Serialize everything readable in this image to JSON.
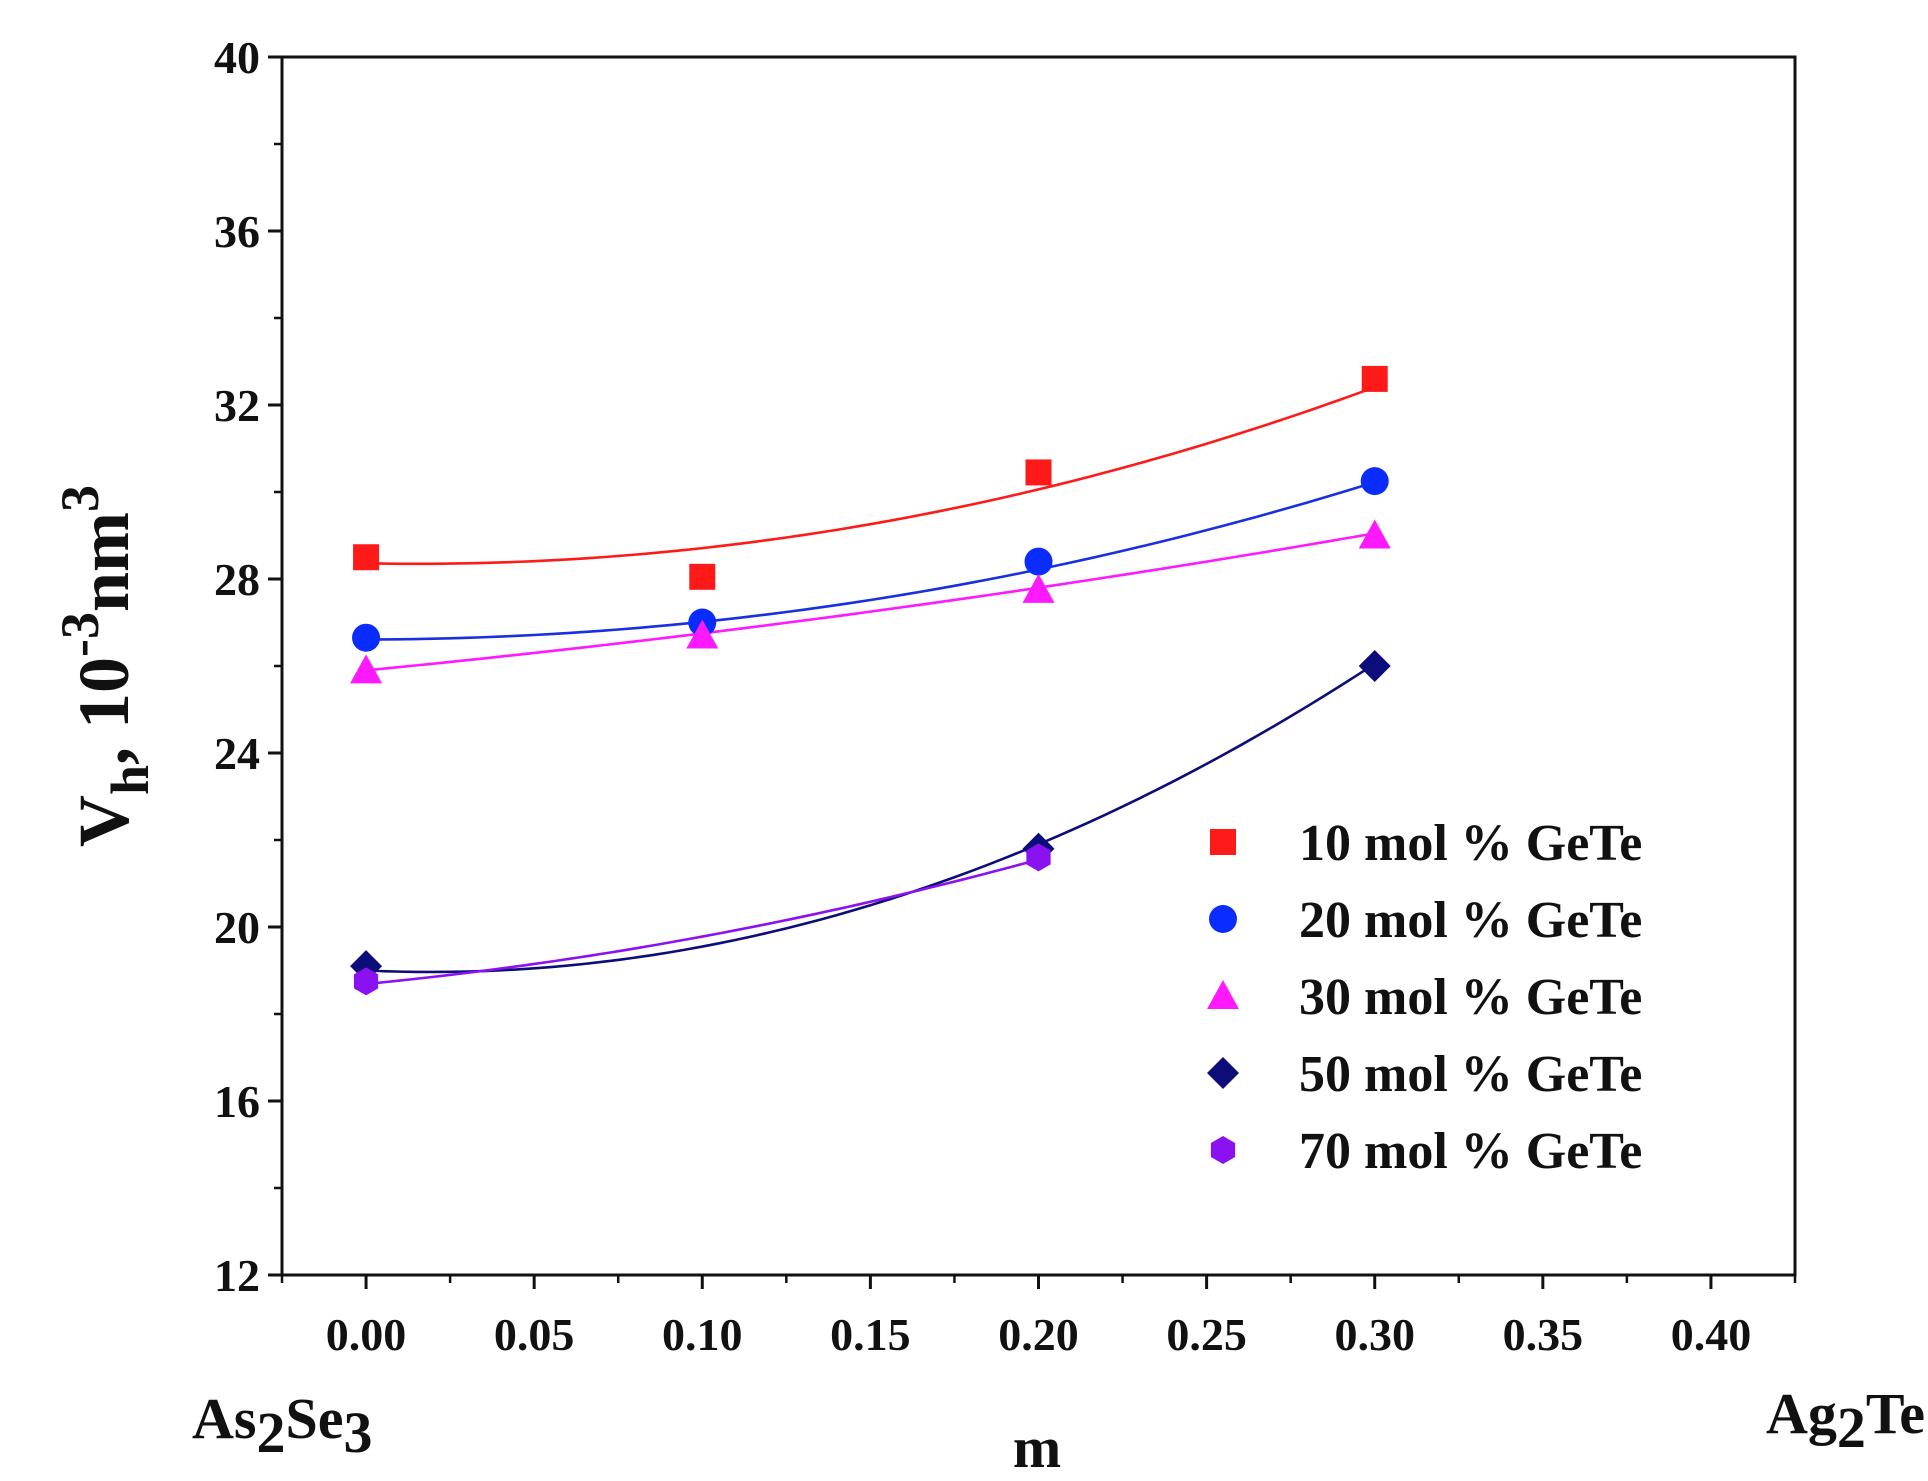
{
  "chart_data": {
    "type": "scatter",
    "title": "",
    "xlabel": "m",
    "ylabel": {
      "main": "V",
      "sub": "h",
      "rest": ", 10",
      "sup1": "-3",
      "unit": "nm",
      "sup2": "3"
    },
    "xlim": [
      -0.025,
      0.425
    ],
    "ylim": [
      12,
      40
    ],
    "xticks": [
      0.0,
      0.05,
      0.1,
      0.15,
      0.2,
      0.25,
      0.3,
      0.35,
      0.4
    ],
    "xtick_labels": [
      "0.00",
      "0.05",
      "0.10",
      "0.15",
      "0.20",
      "0.25",
      "0.30",
      "0.35",
      "0.40"
    ],
    "yticks": [
      12,
      16,
      20,
      24,
      28,
      32,
      36,
      40
    ],
    "ytick_labels": [
      "12",
      "16",
      "20",
      "24",
      "28",
      "32",
      "36",
      "40"
    ],
    "left_endmember": {
      "a": "As",
      "a_sub": "2",
      "b": "Se",
      "b_sub": "3"
    },
    "right_endmember": {
      "a": "Ag",
      "a_sub": "2",
      "b": "Te"
    },
    "legend_position": "lower-right",
    "series": [
      {
        "name": "10 mol % GeTe",
        "color": "#ff1a1a",
        "marker": "square",
        "x": [
          0.0,
          0.1,
          0.2,
          0.3
        ],
        "y": [
          28.5,
          28.05,
          30.45,
          32.6
        ],
        "fit": {
          "color": "#ff1a1a",
          "x": [
            0.0,
            0.3
          ],
          "quad": [
            28.36,
            -1.5,
            50.0
          ]
        }
      },
      {
        "name": "20 mol % GeTe",
        "color": "#0a2cff",
        "marker": "circle",
        "x": [
          0.0,
          0.1,
          0.2,
          0.3
        ],
        "y": [
          26.65,
          27.0,
          28.4,
          30.25
        ],
        "fit": {
          "color": "#1a2fe0",
          "x": [
            0.0,
            0.3
          ],
          "quad": [
            26.61,
            0.05,
            40.0
          ]
        }
      },
      {
        "name": "30 mol % GeTe",
        "color": "#ff19ff",
        "marker": "triangle",
        "x": [
          0.0,
          0.1,
          0.2,
          0.3
        ],
        "y": [
          25.9,
          26.7,
          27.75,
          29.0
        ],
        "fit": {
          "color": "#ff19ff",
          "x": [
            0.0,
            0.3
          ],
          "quad": [
            25.9,
            7.5,
            10.0
          ]
        }
      },
      {
        "name": "50 mol % GeTe",
        "color": "#0c0c7a",
        "marker": "diamond",
        "x": [
          0.0,
          0.2,
          0.3
        ],
        "y": [
          19.1,
          21.8,
          26.0
        ],
        "fit": {
          "color": "#0c0c7a",
          "x": [
            0.0,
            0.3
          ],
          "quad": [
            19.0,
            -3.5,
            90.0
          ]
        }
      },
      {
        "name": "70 mol % GeTe",
        "color": "#8a12f0",
        "marker": "hexagon",
        "x": [
          0.0,
          0.2
        ],
        "y": [
          18.75,
          21.6
        ],
        "fit": {
          "color": "#8a12f0",
          "x": [
            0.0,
            0.2
          ],
          "quad": [
            18.69,
            7.5,
            34.0
          ]
        }
      }
    ]
  }
}
